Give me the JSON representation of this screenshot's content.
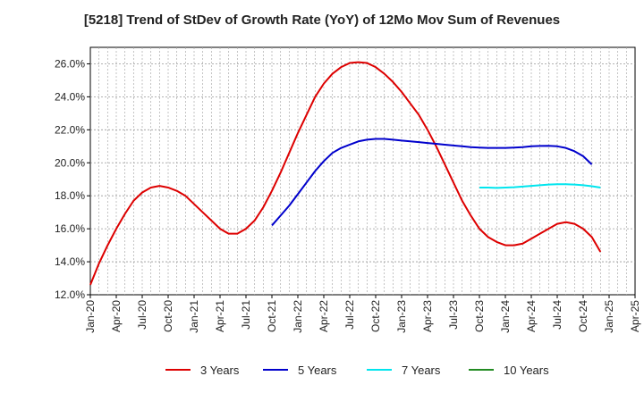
{
  "chart_data": {
    "type": "line",
    "title": "[5218]  Trend of StDev of Growth Rate (YoY) of 12Mo Mov Sum of Revenues",
    "xlabel": "",
    "ylabel": "",
    "ylim": [
      12.0,
      27.0
    ],
    "y_ticks": [
      "12.0%",
      "14.0%",
      "16.0%",
      "18.0%",
      "20.0%",
      "22.0%",
      "24.0%",
      "26.0%"
    ],
    "y_tick_values": [
      12,
      14,
      16,
      18,
      20,
      22,
      24,
      26
    ],
    "x_ticks": [
      "Jan-20",
      "Apr-20",
      "Jul-20",
      "Oct-20",
      "Jan-21",
      "Apr-21",
      "Jul-21",
      "Oct-21",
      "Jan-22",
      "Apr-22",
      "Jul-22",
      "Oct-22",
      "Jan-23",
      "Apr-23",
      "Jul-23",
      "Oct-23",
      "Jan-24",
      "Apr-24",
      "Jul-24",
      "Oct-24",
      "Jan-25",
      "Apr-25"
    ],
    "grid": true,
    "legend_position": "bottom",
    "series": [
      {
        "name": "3 Years",
        "color": "#dd0000",
        "start_index": 0,
        "values": [
          12.6,
          13.9,
          15.0,
          16.0,
          16.9,
          17.7,
          18.2,
          18.5,
          18.6,
          18.5,
          18.3,
          18.0,
          17.5,
          17.0,
          16.5,
          16.0,
          15.7,
          15.7,
          16.0,
          16.5,
          17.3,
          18.3,
          19.4,
          20.6,
          21.8,
          22.9,
          24.0,
          24.8,
          25.4,
          25.8,
          26.05,
          26.1,
          26.05,
          25.8,
          25.4,
          24.9,
          24.3,
          23.6,
          22.9,
          22.0,
          21.0,
          19.9,
          18.8,
          17.7,
          16.8,
          16.0,
          15.5,
          15.2,
          15.0,
          15.0,
          15.1,
          15.4,
          15.7,
          16.0,
          16.3,
          16.4,
          16.3,
          16.0,
          15.5,
          14.6
        ]
      },
      {
        "name": "5 Years",
        "color": "#0000cc",
        "start_index": 21,
        "values": [
          16.2,
          16.8,
          17.4,
          18.1,
          18.8,
          19.5,
          20.1,
          20.6,
          20.9,
          21.1,
          21.3,
          21.4,
          21.45,
          21.45,
          21.4,
          21.35,
          21.3,
          21.25,
          21.2,
          21.15,
          21.1,
          21.05,
          21.0,
          20.95,
          20.92,
          20.9,
          20.9,
          20.9,
          20.92,
          20.95,
          21.0,
          21.02,
          21.03,
          21.0,
          20.9,
          20.7,
          20.4,
          19.9
        ]
      },
      {
        "name": "7 Years",
        "color": "#00e5ee",
        "start_index": 45,
        "values": [
          18.5,
          18.5,
          18.48,
          18.5,
          18.52,
          18.56,
          18.6,
          18.64,
          18.68,
          18.7,
          18.7,
          18.68,
          18.64,
          18.58,
          18.5
        ]
      },
      {
        "name": "10 Years",
        "color": "#228b22",
        "start_index": 0,
        "values": []
      }
    ]
  }
}
